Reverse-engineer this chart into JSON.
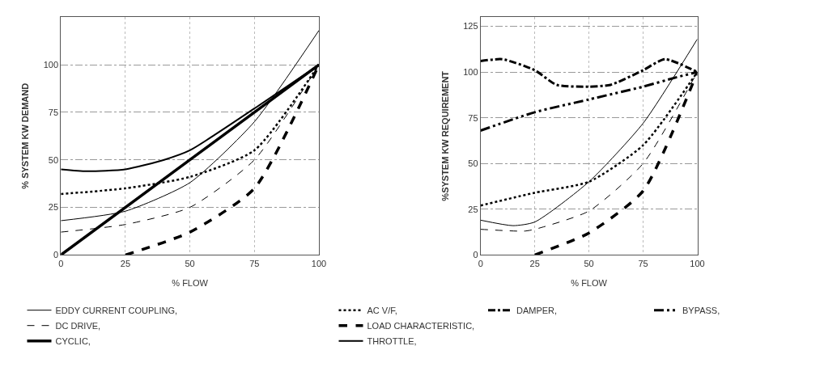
{
  "chart_data": [
    {
      "type": "line",
      "xlabel": "% FLOW",
      "ylabel": "% SYSTEM KW DEMAND",
      "xlim": [
        0,
        100
      ],
      "ylim": [
        0,
        125
      ],
      "xticks": [
        0,
        25,
        50,
        75,
        100
      ],
      "yticks": [
        0,
        25,
        50,
        75,
        100
      ],
      "grid": true,
      "legend": "bottom",
      "marker": "none",
      "series": [
        {
          "name": "EDDY CURRENT COUPLING,",
          "color": "#000000",
          "line_style": "solid",
          "x": [
            0,
            25,
            50,
            75,
            100
          ],
          "values": [
            18,
            23,
            38,
            70,
            118
          ]
        },
        {
          "name": "AC V/F,",
          "color": "#000000",
          "line_style": "dotted",
          "x": [
            0,
            25,
            50,
            75,
            100
          ],
          "values": [
            32,
            35,
            41,
            55,
            100
          ]
        },
        {
          "name": "DC DRIVE,",
          "color": "#000000",
          "line_style": "dashed",
          "x": [
            0,
            25,
            50,
            75,
            100
          ],
          "values": [
            12,
            16,
            25,
            50,
            100
          ]
        },
        {
          "name": "LOAD CHARACTERISTIC,",
          "color": "#000000",
          "line_style": "dashed",
          "x": [
            25,
            50,
            75,
            100
          ],
          "values": [
            0,
            12,
            35,
            100
          ]
        },
        {
          "name": "CYCLIC,",
          "color": "#000000",
          "line_style": "solid",
          "x": [
            0,
            100
          ],
          "values": [
            0,
            100
          ]
        },
        {
          "name": "THROTTLE,",
          "color": "#000000",
          "line_style": "solid",
          "x": [
            0,
            10,
            25,
            40,
            50,
            75,
            100
          ],
          "values": [
            45,
            44,
            45,
            50,
            55,
            77,
            100
          ]
        }
      ]
    },
    {
      "type": "line",
      "xlabel": "% FLOW",
      "ylabel": "%SYSTEM KW REQUIREMENT",
      "xlim": [
        0,
        100
      ],
      "ylim": [
        0,
        130
      ],
      "xticks": [
        0,
        25,
        50,
        75,
        100
      ],
      "yticks": [
        0,
        25,
        50,
        75,
        100,
        125
      ],
      "grid": true,
      "legend": "bottom",
      "marker": "none",
      "series": [
        {
          "color": "#000000",
          "line_style": "solid",
          "x": [
            0,
            15,
            25,
            50,
            75,
            100
          ],
          "values": [
            19,
            16,
            18,
            40,
            72,
            118
          ]
        },
        {
          "color": "#000000",
          "line_style": "dotted",
          "x": [
            0,
            25,
            50,
            75,
            100
          ],
          "values": [
            27,
            34,
            40,
            60,
            100
          ]
        },
        {
          "color": "#000000",
          "line_style": "dashed",
          "x": [
            0,
            20,
            25,
            50,
            75,
            100
          ],
          "values": [
            14,
            13,
            14,
            24,
            50,
            100
          ]
        },
        {
          "color": "#000000",
          "line_style": "dashed",
          "x": [
            25,
            50,
            75,
            100
          ],
          "values": [
            0,
            12,
            35,
            100
          ]
        },
        {
          "name": "DAMPER,",
          "color": "#000000",
          "line_style": "dashdot",
          "x": [
            0,
            10,
            25,
            35,
            50,
            60,
            75,
            85,
            100
          ],
          "values": [
            106,
            107,
            101,
            93,
            92,
            93,
            101,
            107,
            100
          ]
        },
        {
          "name": "BYPASS,",
          "color": "#000000",
          "line_style": "dashdotdot",
          "x": [
            0,
            25,
            50,
            75,
            90,
            100
          ],
          "values": [
            68,
            78,
            85,
            92,
            97,
            100
          ]
        }
      ]
    }
  ]
}
